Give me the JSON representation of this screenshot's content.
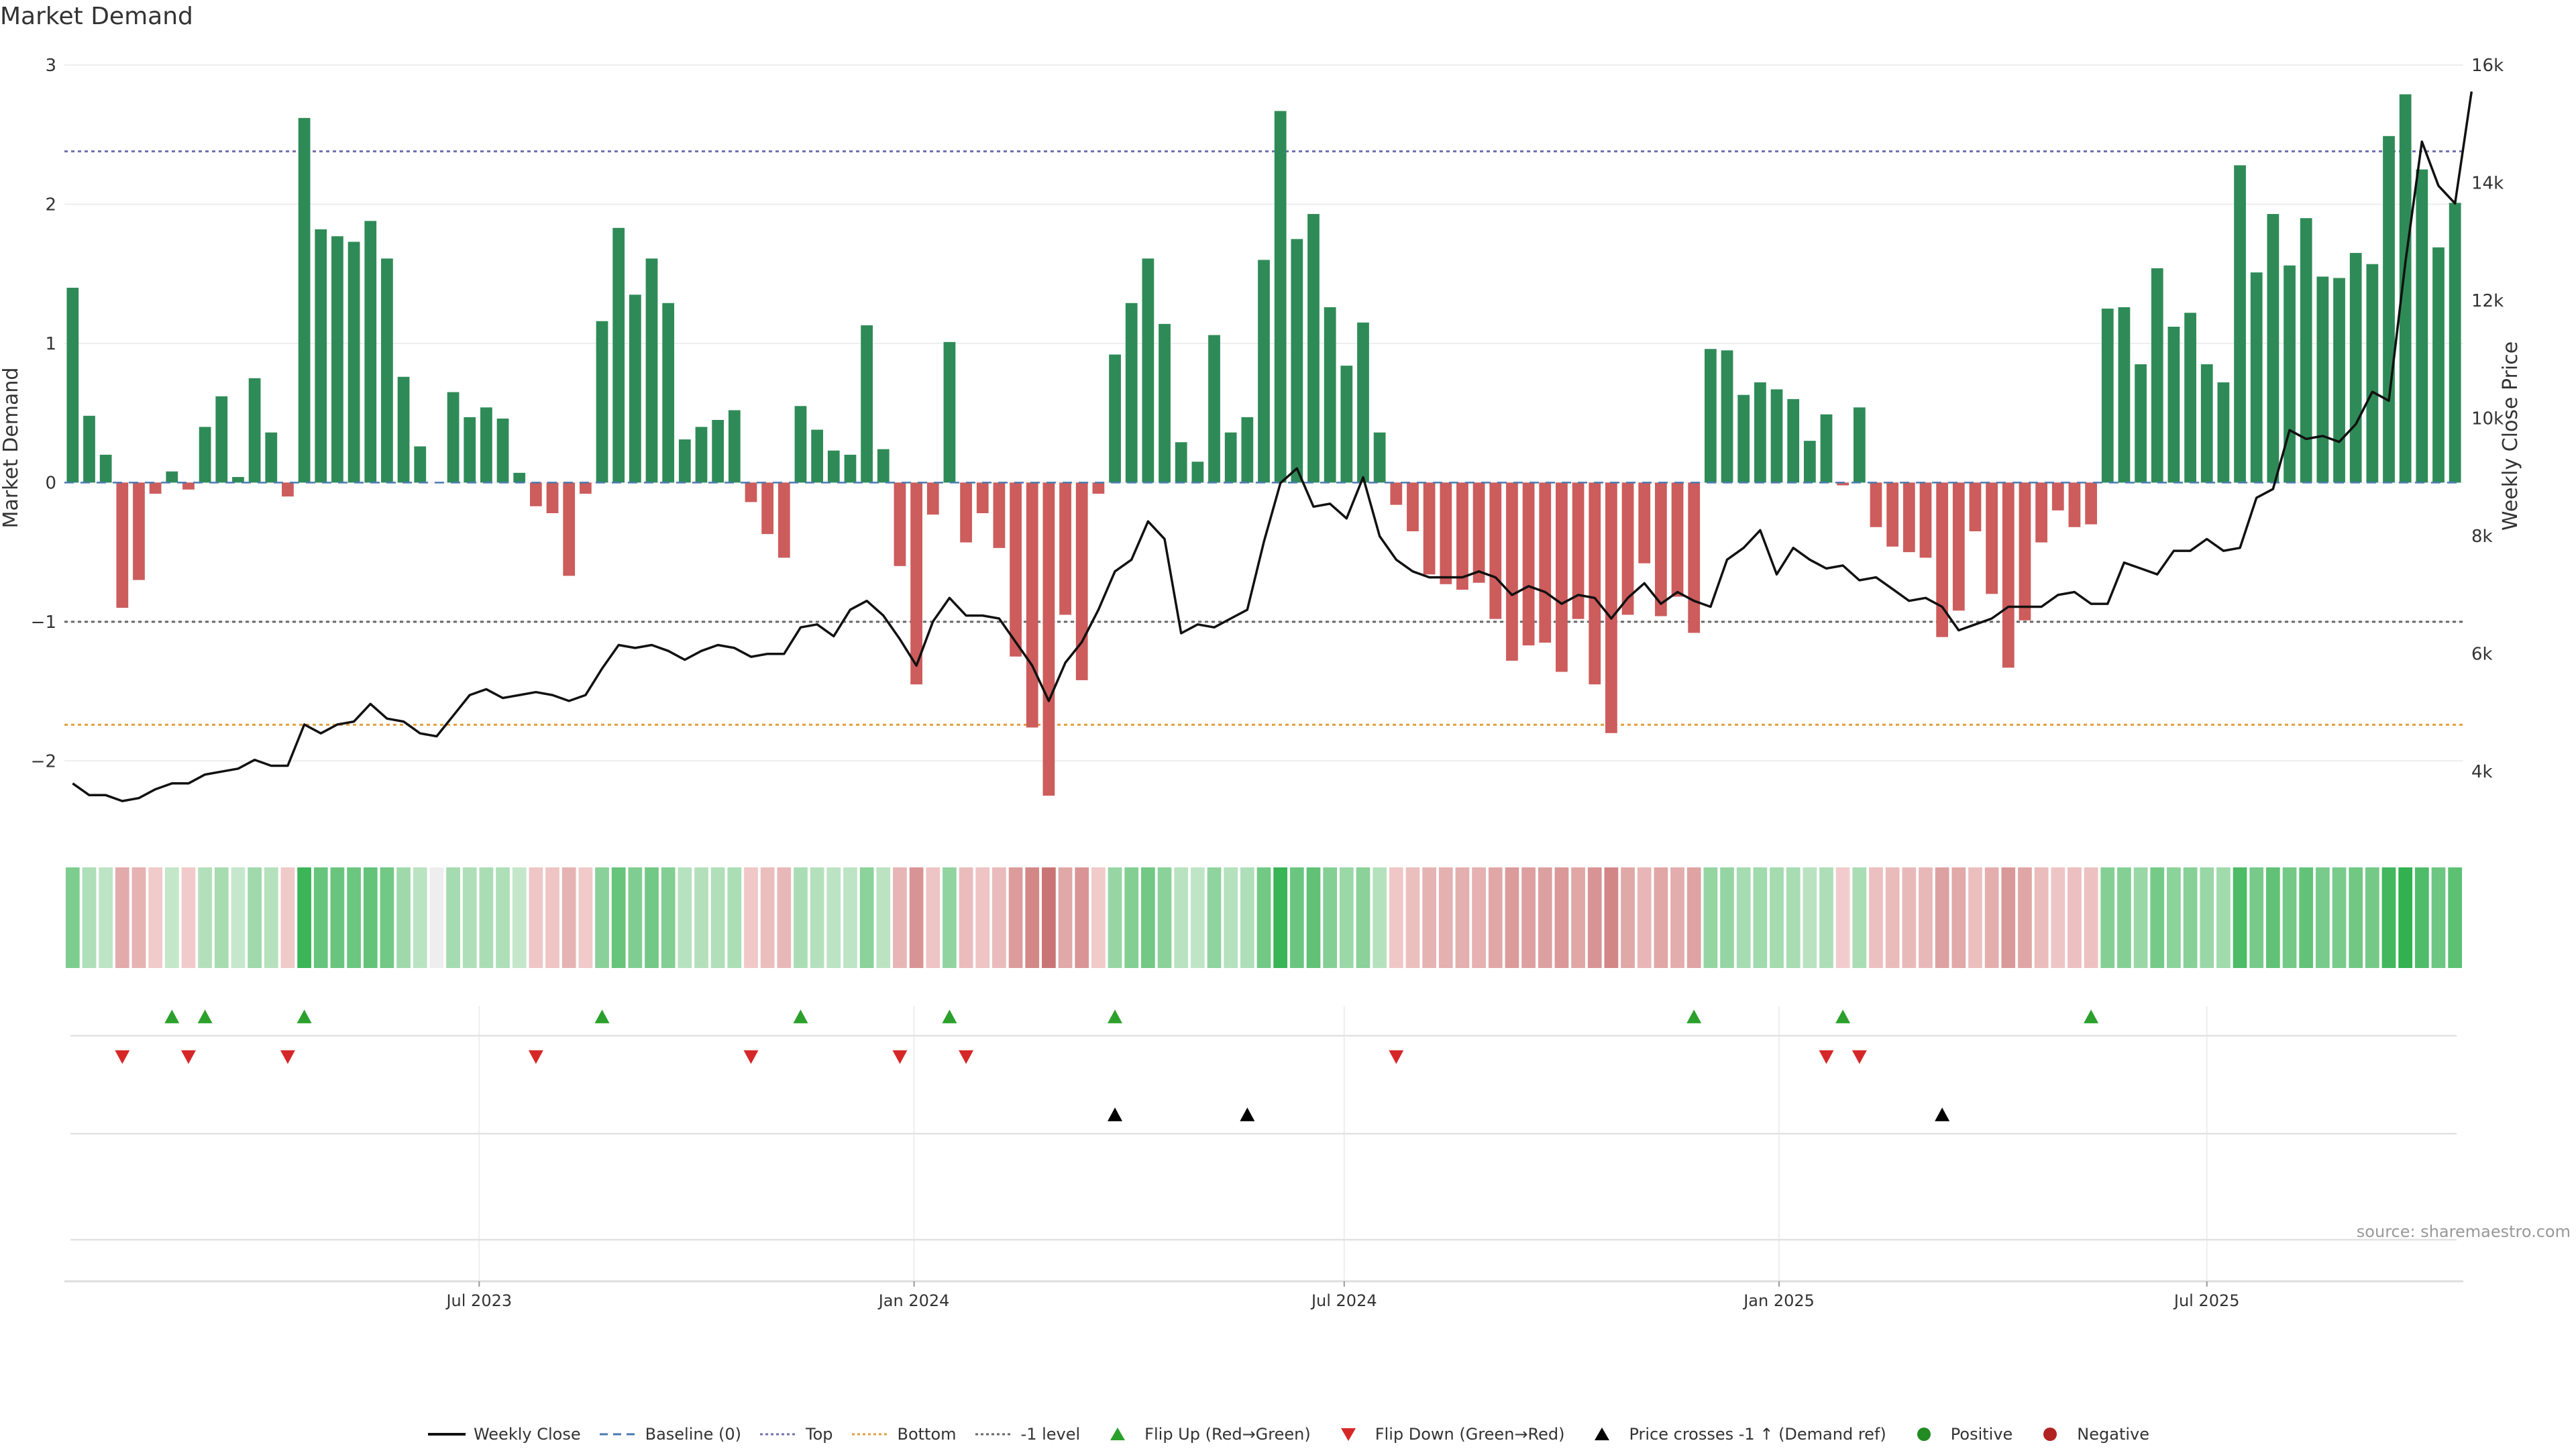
{
  "title": "Market Demand",
  "source": "source: sharemaestro.com",
  "colors": {
    "positive": "#2e8b57",
    "negative": "#cd5c5c",
    "price": "#111111",
    "top": "#7070b0",
    "bottom": "#e0a040",
    "minus_one": "#666666",
    "baseline": "#4a7ab0",
    "flip_up": "#2ca02c",
    "flip_down": "#d62728",
    "cross": "#000000",
    "legend_positive": "#228b22",
    "legend_negative": "#b22222"
  },
  "legend": [
    {
      "label": "Weekly Close",
      "key": "line"
    },
    {
      "label": "Baseline (0)",
      "key": "dash-blue"
    },
    {
      "label": "Top",
      "key": "dot-purple"
    },
    {
      "label": "Bottom",
      "key": "dot-orange"
    },
    {
      "label": "-1 level",
      "key": "dot-gray"
    },
    {
      "label": "Flip Up (Red→Green)",
      "key": "tri-up-green"
    },
    {
      "label": "Flip Down (Green→Red)",
      "key": "tri-down-red"
    },
    {
      "label": "Price crosses -1 ↑ (Demand ref)",
      "key": "tri-up-black"
    },
    {
      "label": "Positive",
      "key": "dot-green"
    },
    {
      "label": "Negative",
      "key": "dot-red"
    }
  ],
  "chart_data": {
    "type": "bar",
    "title": "Market Demand",
    "ylabel": "Market Demand",
    "y2label": "Weekly Close Price",
    "ylim": [
      -2.5,
      3.0
    ],
    "y2lim": [
      3000,
      16000
    ],
    "yticks": [
      3,
      2,
      1,
      0,
      -1,
      -2
    ],
    "ytick_labels": [
      "3",
      "2",
      "1",
      "0",
      "−1",
      "−2"
    ],
    "y2ticks": [
      16000,
      14000,
      12000,
      10000,
      8000,
      6000,
      4000
    ],
    "y2tick_labels": [
      "16k",
      "14k",
      "12k",
      "10k",
      "8k",
      "6k",
      "4k"
    ],
    "reference_lines": {
      "baseline": 0,
      "top": 2.38,
      "bottom": -1.74,
      "minus_one": -1
    },
    "x_start_week": "2023-01-10",
    "x_ticks": [
      "2023-07-01",
      "2024-01-01",
      "2024-07-01",
      "2025-01-01",
      "2025-07-01"
    ],
    "x_tick_labels": [
      "Jul 2023",
      "Jan 2024",
      "Jul 2024",
      "Jan 2025",
      "Jul 2025"
    ],
    "demand": [
      1.4,
      0.48,
      0.2,
      -0.9,
      -0.7,
      -0.08,
      0.08,
      -0.05,
      0.4,
      0.62,
      0.04,
      0.75,
      0.36,
      -0.1,
      2.62,
      1.82,
      1.77,
      1.73,
      1.88,
      1.61,
      0.76,
      0.26,
      0,
      0.65,
      0.47,
      0.54,
      0.46,
      0.07,
      -0.17,
      -0.22,
      -0.67,
      -0.08,
      1.16,
      1.83,
      1.35,
      1.61,
      1.29,
      0.31,
      0.4,
      0.45,
      0.52,
      -0.14,
      -0.37,
      -0.54,
      0.55,
      0.38,
      0.23,
      0.2,
      1.13,
      0.24,
      -0.6,
      -1.45,
      -0.23,
      1.01,
      -0.43,
      -0.22,
      -0.47,
      -1.25,
      -1.76,
      -2.25,
      -0.95,
      -1.42,
      -0.08,
      0.92,
      1.29,
      1.61,
      1.14,
      0.29,
      0.15,
      1.06,
      0.36,
      0.47,
      1.6,
      2.67,
      1.75,
      1.93,
      1.26,
      0.84,
      1.15,
      0.36,
      -0.16,
      -0.35,
      -0.66,
      -0.73,
      -0.77,
      -0.72,
      -0.98,
      -1.28,
      -1.17,
      -1.15,
      -1.36,
      -0.98,
      -1.45,
      -1.8,
      -0.95,
      -0.58,
      -0.96,
      -0.82,
      -1.08,
      0.96,
      0.95,
      0.63,
      0.72,
      0.67,
      0.6,
      0.3,
      0.49,
      -0.02,
      0.54,
      -0.32,
      -0.46,
      -0.5,
      -0.54,
      -1.11,
      -0.92,
      -0.35,
      -0.8,
      -1.33,
      -0.99,
      -0.43,
      -0.2,
      -0.32,
      -0.3,
      1.25,
      1.26,
      0.85,
      1.54,
      1.12,
      1.22,
      0.85,
      0.72,
      2.28,
      1.51,
      1.93,
      1.56,
      1.9,
      1.48,
      1.47,
      1.65,
      1.57,
      2.49,
      2.79,
      2.25,
      1.69,
      2.01
    ],
    "weekly_close": [
      3800,
      3600,
      3600,
      3500,
      3550,
      3700,
      3800,
      3800,
      3950,
      4000,
      4050,
      4200,
      4100,
      4100,
      4800,
      4650,
      4800,
      4850,
      5150,
      4900,
      4850,
      4650,
      4600,
      4950,
      5300,
      5400,
      5250,
      5300,
      5350,
      5300,
      5200,
      5300,
      5750,
      6150,
      6100,
      6150,
      6050,
      5900,
      6050,
      6150,
      6100,
      5950,
      6000,
      6000,
      6450,
      6500,
      6300,
      6750,
      6900,
      6650,
      6250,
      5800,
      6550,
      6950,
      6650,
      6650,
      6600,
      6200,
      5800,
      5200,
      5850,
      6200,
      6750,
      7400,
      7600,
      8250,
      7950,
      6350,
      6500,
      6450,
      6600,
      6750,
      7900,
      8900,
      9150,
      8500,
      8550,
      8300,
      9000,
      8000,
      7600,
      7400,
      7300,
      7300,
      7300,
      7400,
      7300,
      7000,
      7150,
      7050,
      6850,
      7000,
      6950,
      6600,
      6950,
      7200,
      6850,
      7050,
      6900,
      6800,
      7600,
      7800,
      8100,
      7350,
      7800,
      7600,
      7450,
      7500,
      7250,
      7300,
      7100,
      6900,
      6950,
      6800,
      6400,
      6500,
      6600,
      6800,
      6800,
      6800,
      7000,
      7050,
      6850,
      6850,
      7550,
      7450,
      7350,
      7750,
      7750,
      7950,
      7750,
      7800,
      8650,
      8800,
      9800,
      9650,
      9700,
      9600,
      9900,
      10450,
      10300,
      12650,
      14700,
      13950,
      13650,
      15550
    ],
    "flip_up_indices": [
      6,
      8,
      14,
      32,
      44,
      53,
      63,
      98,
      107,
      122
    ],
    "flip_down_indices": [
      3,
      7,
      13,
      28,
      41,
      50,
      54,
      80,
      106,
      108
    ],
    "price_cross_indices": [
      63,
      71,
      113
    ]
  }
}
